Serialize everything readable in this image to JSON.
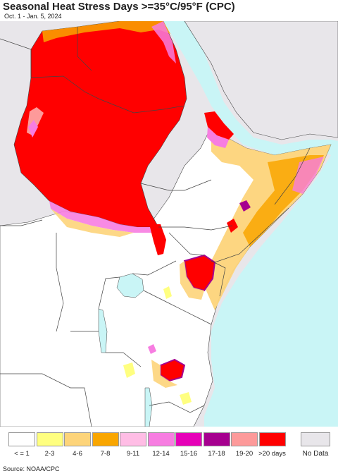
{
  "title": "Seasonal Heat Stress Days >=35°C/95°F (CPC)",
  "subtitle": "Oct. 1 - Jan. 5, 2024",
  "source": "Source: NOAA/CPC",
  "legend": {
    "items": [
      {
        "label": "< = 1",
        "color": "#ffffff"
      },
      {
        "label": "2-3",
        "color": "#ffff80"
      },
      {
        "label": "4-6",
        "color": "#fdd47a"
      },
      {
        "label": "7-8",
        "color": "#f9a600"
      },
      {
        "label": "9-11",
        "color": "#ffbde5"
      },
      {
        "label": "12-14",
        "color": "#f77de1"
      },
      {
        "label": "15-16",
        "color": "#e600b8"
      },
      {
        "label": "17-18",
        "color": "#a6008f"
      },
      {
        "label": "19-20",
        "color": "#fd9a9a"
      },
      {
        "label": ">20 days",
        "color": "#ff0000"
      }
    ],
    "nodata": {
      "label": "No Data",
      "color": "#e8e6ea"
    }
  },
  "map": {
    "ocean_color": "#c9f5f6",
    "land_nodata_color": "#e8e6ea",
    "land_low_color": "#ffffff",
    "border_color": "#444444"
  }
}
